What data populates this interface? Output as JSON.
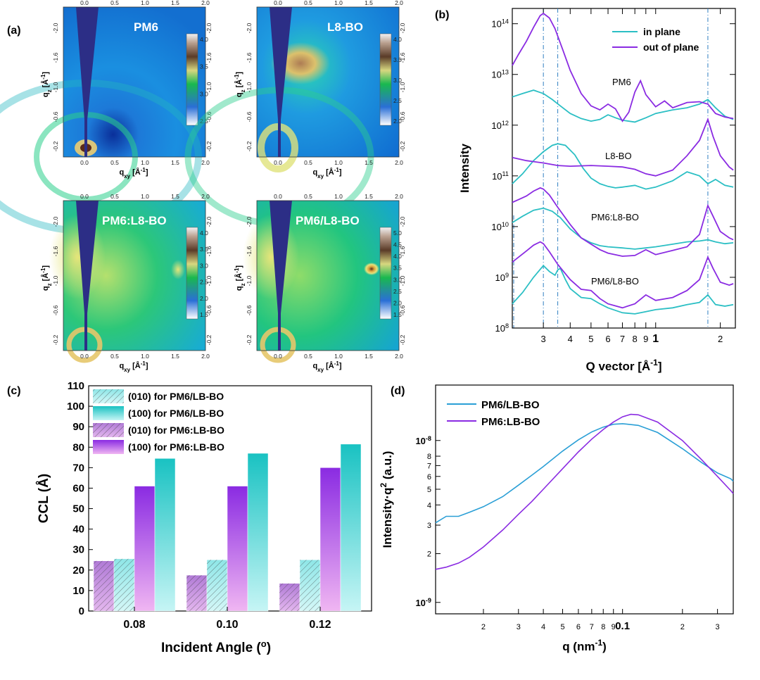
{
  "panels": {
    "a": {
      "letter": "(a)",
      "subpanels": [
        {
          "title": "PM6",
          "colorbar": [
            "4.0",
            "3.5",
            "3.0",
            "2.5"
          ],
          "cbar_colors": [
            "#e8e8ea",
            "#b9a08f",
            "#5a3b28",
            "#19b84f",
            "#2a6fd6",
            "#ffffff"
          ],
          "x_ticks": [
            "0.0",
            "0.5",
            "1.0",
            "1.5",
            "2.0"
          ],
          "xlabel": "qxy [Å-1]",
          "ylabel": "qz [Å-1]",
          "y_ticks": [
            "-2.0",
            "-1.6",
            "-1.0",
            "-0.6",
            "-0.2"
          ]
        },
        {
          "title": "L8-BO",
          "colorbar": [
            "4.0",
            "3.5",
            "3.0",
            "2.5",
            "2.0"
          ],
          "x_ticks": [
            "0.0",
            "0.5",
            "1.0",
            "1.5",
            "2.0"
          ],
          "xlabel": "qxy [Å-1]",
          "ylabel": "qz [Å-1]",
          "y_ticks": [
            "-2.0",
            "-1.6",
            "-1.0",
            "-0.6",
            "-0.2"
          ]
        },
        {
          "title": "PM6:L8-BO",
          "colorbar": [
            "4.0",
            "3.5",
            "3.0",
            "2.5",
            "2.0",
            "1.5"
          ],
          "x_ticks": [
            "0.0",
            "0.5",
            "1.0",
            "1.5",
            "2.0"
          ],
          "xlabel": "qxy [Å-1]",
          "ylabel": "qz [Å-1]",
          "y_ticks": [
            "-2.0",
            "-1.6",
            "-1.0",
            "-0.6",
            "-0.2"
          ]
        },
        {
          "title": "PM6/L8-BO",
          "colorbar": [
            "5.0",
            "4.5",
            "4.0",
            "3.5",
            "3.0",
            "2.5",
            "2.0",
            "1.5"
          ],
          "x_ticks": [
            "0.0",
            "0.5",
            "1.0",
            "1.5",
            "2.0"
          ],
          "xlabel": "qxy [Å-1]",
          "ylabel": "qz [Å-1]",
          "y_ticks": [
            "-2.0",
            "-1.6",
            "-1.0",
            "-0.6",
            "-0.2"
          ]
        }
      ]
    },
    "b": {
      "letter": "(b)"
    },
    "c": {
      "letter": "(c)"
    },
    "d": {
      "letter": "(d)"
    }
  },
  "chart_data": [
    {
      "panel": "b",
      "type": "line",
      "xlabel": "Q vector [Å-1]",
      "ylabel": "Intensity",
      "x_scale": "log",
      "y_scale": "log",
      "xlim": [
        0.215,
        2.35
      ],
      "ylim": [
        100000000.0,
        200000000000000.0
      ],
      "x_tick_labels": [
        "3",
        "4",
        "5",
        "6",
        "7",
        "8",
        "9",
        "1",
        "2"
      ],
      "y_tick_labels": [
        "10^8",
        "10^9",
        "10^10",
        "10^11",
        "10^12",
        "10^13",
        "10^14"
      ],
      "legend": [
        "in plane",
        "out of plane"
      ],
      "legend_position": "top-right",
      "colors": {
        "in_plane": "#2bbfc4",
        "out_of_plane": "#8a2be2",
        "guide": "#2f7fc1"
      },
      "reference_lines_x": [
        0.3,
        0.35,
        1.75
      ],
      "series": [
        {
          "sample": "PM6",
          "name": "in plane",
          "x": [
            0.215,
            0.24,
            0.27,
            0.3,
            0.33,
            0.36,
            0.4,
            0.45,
            0.5,
            0.55,
            0.6,
            0.65,
            0.7,
            0.8,
            0.9,
            1.0,
            1.2,
            1.4,
            1.6,
            1.75,
            1.9,
            2.1,
            2.3
          ],
          "y": [
            3600000000000.0,
            4200000000000.0,
            4900000000000.0,
            4200000000000.0,
            3200000000000.0,
            2400000000000.0,
            1700000000000.0,
            1350000000000.0,
            1200000000000.0,
            1300000000000.0,
            1600000000000.0,
            1400000000000.0,
            1250000000000.0,
            1150000000000.0,
            1400000000000.0,
            1700000000000.0,
            2000000000000.0,
            2200000000000.0,
            2600000000000.0,
            3200000000000.0,
            2200000000000.0,
            1500000000000.0,
            1300000000000.0
          ]
        },
        {
          "sample": "PM6",
          "name": "out of plane",
          "x": [
            0.215,
            0.23,
            0.25,
            0.27,
            0.29,
            0.3,
            0.32,
            0.34,
            0.37,
            0.4,
            0.45,
            0.5,
            0.55,
            0.6,
            0.65,
            0.7,
            0.75,
            0.8,
            0.85,
            0.9,
            1.0,
            1.1,
            1.2,
            1.4,
            1.6,
            1.75,
            1.9,
            2.1,
            2.3
          ],
          "y": [
            15000000000000.0,
            25000000000000.0,
            45000000000000.0,
            85000000000000.0,
            145000000000000.0,
            160000000000000.0,
            130000000000000.0,
            80000000000000.0,
            30000000000000.0,
            12000000000000.0,
            4200000000000.0,
            2400000000000.0,
            2000000000000.0,
            2600000000000.0,
            2100000000000.0,
            1200000000000.0,
            1800000000000.0,
            4500000000000.0,
            7500000000000.0,
            4000000000000.0,
            2300000000000.0,
            3000000000000.0,
            2200000000000.0,
            2800000000000.0,
            2900000000000.0,
            2600000000000.0,
            1700000000000.0,
            1450000000000.0,
            1350000000000.0
          ]
        },
        {
          "sample": "L8-BO",
          "name": "in plane",
          "x": [
            0.215,
            0.24,
            0.27,
            0.3,
            0.33,
            0.35,
            0.38,
            0.42,
            0.46,
            0.5,
            0.55,
            0.6,
            0.65,
            0.7,
            0.8,
            0.9,
            1.0,
            1.2,
            1.4,
            1.6,
            1.75,
            1.9,
            2.1,
            2.3
          ],
          "y": [
            70000000000.0,
            110000000000.0,
            200000000000.0,
            300000000000.0,
            400000000000.0,
            430000000000.0,
            400000000000.0,
            260000000000.0,
            140000000000.0,
            90000000000.0,
            70000000000.0,
            62000000000.0,
            58000000000.0,
            60000000000.0,
            65000000000.0,
            55000000000.0,
            60000000000.0,
            80000000000.0,
            120000000000.0,
            100000000000.0,
            70000000000.0,
            85000000000.0,
            65000000000.0,
            60000000000.0
          ]
        },
        {
          "sample": "L8-BO",
          "name": "out of plane",
          "x": [
            0.215,
            0.25,
            0.3,
            0.35,
            0.4,
            0.5,
            0.6,
            0.7,
            0.8,
            0.9,
            1.0,
            1.2,
            1.4,
            1.6,
            1.75,
            1.85,
            2.0,
            2.2,
            2.3
          ],
          "y": [
            230000000000.0,
            200000000000.0,
            180000000000.0,
            160000000000.0,
            155000000000.0,
            160000000000.0,
            155000000000.0,
            150000000000.0,
            135000000000.0,
            110000000000.0,
            100000000000.0,
            130000000000.0,
            250000000000.0,
            500000000000.0,
            1300000000000.0,
            600000000000.0,
            250000000000.0,
            150000000000.0,
            130000000000.0
          ]
        },
        {
          "sample": "PM6:L8-BO",
          "name": "in plane",
          "x": [
            0.215,
            0.24,
            0.27,
            0.3,
            0.33,
            0.36,
            0.4,
            0.45,
            0.5,
            0.55,
            0.6,
            0.7,
            0.8,
            0.9,
            1.0,
            1.2,
            1.4,
            1.6,
            1.75,
            1.9,
            2.1,
            2.3
          ],
          "y": [
            12000000000.0,
            16000000000.0,
            21000000000.0,
            23000000000.0,
            20000000000.0,
            15000000000.0,
            9000000000.0,
            6000000000.0,
            4800000000.0,
            4200000000.0,
            4000000000.0,
            3800000000.0,
            3600000000.0,
            3800000000.0,
            4000000000.0,
            4500000000.0,
            5000000000.0,
            5200000000.0,
            5500000000.0,
            5000000000.0,
            4600000000.0,
            4800000000.0
          ]
        },
        {
          "sample": "PM6:L8-BO",
          "name": "out of plane",
          "x": [
            0.215,
            0.23,
            0.25,
            0.27,
            0.29,
            0.3,
            0.32,
            0.35,
            0.4,
            0.45,
            0.5,
            0.55,
            0.6,
            0.7,
            0.8,
            0.9,
            1.0,
            1.2,
            1.4,
            1.6,
            1.75,
            1.85,
            2.0,
            2.2,
            2.3
          ],
          "y": [
            30000000000.0,
            34000000000.0,
            40000000000.0,
            50000000000.0,
            58000000000.0,
            55000000000.0,
            42000000000.0,
            24000000000.0,
            11000000000.0,
            6000000000.0,
            4500000000.0,
            3500000000.0,
            3000000000.0,
            2600000000.0,
            2700000000.0,
            3500000000.0,
            2800000000.0,
            3400000000.0,
            4000000000.0,
            7000000000.0,
            26000000000.0,
            16000000000.0,
            8000000000.0,
            6000000000.0,
            5500000000.0
          ]
        },
        {
          "sample": "PM6/L8-BO",
          "name": "in plane",
          "x": [
            0.215,
            0.24,
            0.27,
            0.3,
            0.32,
            0.34,
            0.35,
            0.36,
            0.38,
            0.4,
            0.45,
            0.5,
            0.55,
            0.6,
            0.7,
            0.8,
            0.9,
            1.0,
            1.2,
            1.4,
            1.6,
            1.75,
            1.9,
            2.1,
            2.3
          ],
          "y": [
            300000000.0,
            500000000.0,
            1000000000.0,
            1700000000.0,
            1300000000.0,
            1100000000.0,
            1400000000.0,
            1500000000.0,
            900000000.0,
            600000000.0,
            400000000.0,
            380000000.0,
            300000000.0,
            250000000.0,
            200000000.0,
            190000000.0,
            210000000.0,
            230000000.0,
            250000000.0,
            290000000.0,
            320000000.0,
            450000000.0,
            290000000.0,
            270000000.0,
            290000000.0
          ]
        },
        {
          "sample": "PM6/L8-BO",
          "name": "out of plane",
          "x": [
            0.215,
            0.23,
            0.25,
            0.27,
            0.29,
            0.3,
            0.32,
            0.35,
            0.4,
            0.45,
            0.5,
            0.55,
            0.6,
            0.7,
            0.8,
            0.9,
            1.0,
            1.2,
            1.4,
            1.6,
            1.75,
            1.85,
            2.0,
            2.2,
            2.3
          ],
          "y": [
            2000000000.0,
            2500000000.0,
            3300000000.0,
            4300000000.0,
            5000000000.0,
            4600000000.0,
            3200000000.0,
            1800000000.0,
            900000000.0,
            580000000.0,
            550000000.0,
            380000000.0,
            300000000.0,
            250000000.0,
            300000000.0,
            450000000.0,
            350000000.0,
            400000000.0,
            550000000.0,
            900000000.0,
            2500000000.0,
            1500000000.0,
            800000000.0,
            700000000.0,
            750000000.0
          ]
        }
      ],
      "annotations": [
        "PM6",
        "L8-BO",
        "PM6:L8-BO",
        "PM6/L8-BO"
      ]
    },
    {
      "panel": "c",
      "type": "bar",
      "xlabel": "Incident Angle (o)",
      "ylabel": "CCL  (Å)",
      "categories": [
        "0.08",
        "0.10",
        "0.12"
      ],
      "ylim": [
        0,
        110
      ],
      "y_ticks": [
        0,
        10,
        20,
        30,
        40,
        50,
        60,
        70,
        80,
        90,
        100,
        110
      ],
      "legend_position": "top-left",
      "series": [
        {
          "name": "(010) for PM6:LB-BO",
          "values": [
            24.5,
            17.5,
            13.5
          ],
          "color": "#c58be0",
          "hatch": true
        },
        {
          "name": "(010) for PM6/LB-BO",
          "values": [
            25.5,
            25.0,
            25.0
          ],
          "color": "#9deced",
          "hatch": true
        },
        {
          "name": "(100) for PM6:LB-BO",
          "values": [
            61.0,
            61.0,
            70.0
          ],
          "color": "#8a2be2",
          "hatch": false
        },
        {
          "name": "(100) for PM6/LB-BO",
          "values": [
            74.5,
            77.0,
            81.5
          ],
          "color": "#19c2c2",
          "hatch": false
        }
      ],
      "legend": [
        "(010) for PM6/LB-BO",
        "(100) for PM6/LB-BO",
        "(010) for PM6:LB-BO",
        "(100) for PM6:LB-BO"
      ]
    },
    {
      "panel": "d",
      "type": "line",
      "xlabel": "q (nm-1)",
      "ylabel": "Intensity·q2 (a.u.)",
      "x_scale": "log",
      "y_scale": "log",
      "xlim": [
        0.0115,
        0.36
      ],
      "ylim": [
        8.5e-10,
        2.2e-08
      ],
      "x_tick_labels": [
        "2",
        "3",
        "4",
        "5",
        "6",
        "7",
        "8",
        "9",
        "0.1",
        "2",
        "3"
      ],
      "y_tick_labels": [
        "10^-8",
        "8",
        "7",
        "6",
        "5",
        "4",
        "3",
        "2",
        "10^-9"
      ],
      "legend_position": "top-left",
      "series": [
        {
          "name": "PM6/LB-BO",
          "color": "#2a9fd6",
          "x": [
            0.0115,
            0.013,
            0.015,
            0.017,
            0.02,
            0.025,
            0.03,
            0.035,
            0.04,
            0.05,
            0.06,
            0.07,
            0.08,
            0.09,
            0.1,
            0.12,
            0.15,
            0.2,
            0.25,
            0.3,
            0.35,
            0.36
          ],
          "y": [
            3.1e-09,
            3.4e-09,
            3.4e-09,
            3.6e-09,
            3.9e-09,
            4.5e-09,
            5.3e-09,
            6.1e-09,
            6.9e-09,
            8.6e-09,
            1.01e-08,
            1.13e-08,
            1.21e-08,
            1.26e-08,
            1.27e-08,
            1.24e-08,
            1.12e-08,
            8.9e-09,
            7.3e-09,
            6.3e-09,
            5.8e-09,
            5.6e-09
          ]
        },
        {
          "name": "PM6:LB-BO",
          "color": "#8a2be2",
          "x": [
            0.0115,
            0.013,
            0.015,
            0.017,
            0.02,
            0.025,
            0.03,
            0.035,
            0.04,
            0.05,
            0.06,
            0.07,
            0.08,
            0.09,
            0.1,
            0.11,
            0.12,
            0.15,
            0.2,
            0.25,
            0.3,
            0.35,
            0.36
          ],
          "y": [
            1.6e-09,
            1.65e-09,
            1.75e-09,
            1.9e-09,
            2.2e-09,
            2.8e-09,
            3.5e-09,
            4.2e-09,
            5e-09,
            6.7e-09,
            8.5e-09,
            1.02e-08,
            1.17e-08,
            1.3e-08,
            1.4e-08,
            1.45e-08,
            1.44e-08,
            1.3e-08,
            1e-08,
            7.6e-09,
            6e-09,
            4.9e-09,
            4.7e-09
          ]
        }
      ],
      "legend": [
        "PM6/LB-BO",
        "PM6:LB-BO"
      ]
    }
  ]
}
